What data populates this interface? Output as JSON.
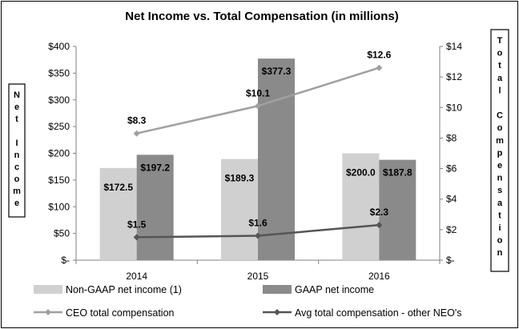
{
  "chart_data": {
    "type": "bar+line",
    "title": "Net Income vs. Total Compensation (in millions)",
    "left_axis_title": "Net Income",
    "right_axis_title": "Total Compensation",
    "categories": [
      "2014",
      "2015",
      "2016"
    ],
    "left_ylim": [
      0,
      400
    ],
    "left_ticks": [
      0,
      50,
      100,
      150,
      200,
      250,
      300,
      350,
      400
    ],
    "left_tick_labels": [
      "$-",
      "$50",
      "$100",
      "$150",
      "$200",
      "$250",
      "$300",
      "$350",
      "$400"
    ],
    "right_ylim": [
      0,
      14
    ],
    "right_ticks": [
      0,
      2,
      4,
      6,
      8,
      10,
      12,
      14
    ],
    "right_tick_labels": [
      "$-",
      "$2",
      "$4",
      "$6",
      "$8",
      "$10",
      "$12",
      "$14"
    ],
    "bar_series": [
      {
        "name": "Non-GAAP net income (1)",
        "color": "#d0d0d0",
        "values": [
          172.5,
          189.3,
          200.0
        ],
        "labels": [
          "$172.5",
          "$189.3",
          "$200.0"
        ]
      },
      {
        "name": "GAAP net income",
        "color": "#8a8a8a",
        "values": [
          197.2,
          377.3,
          187.8
        ],
        "labels": [
          "$197.2",
          "$377.3",
          "$187.8"
        ]
      }
    ],
    "line_series": [
      {
        "name": "CEO total compensation",
        "color": "#a0a0a0",
        "values": [
          8.3,
          10.1,
          12.6
        ],
        "labels": [
          "$8.3",
          "$10.1",
          "$12.6"
        ]
      },
      {
        "name": "Avg total compensation - other NEO's",
        "color": "#555555",
        "values": [
          1.5,
          1.6,
          2.3
        ],
        "labels": [
          "$1.5",
          "$1.6",
          "$2.3"
        ]
      }
    ],
    "legend_position": "bottom"
  }
}
